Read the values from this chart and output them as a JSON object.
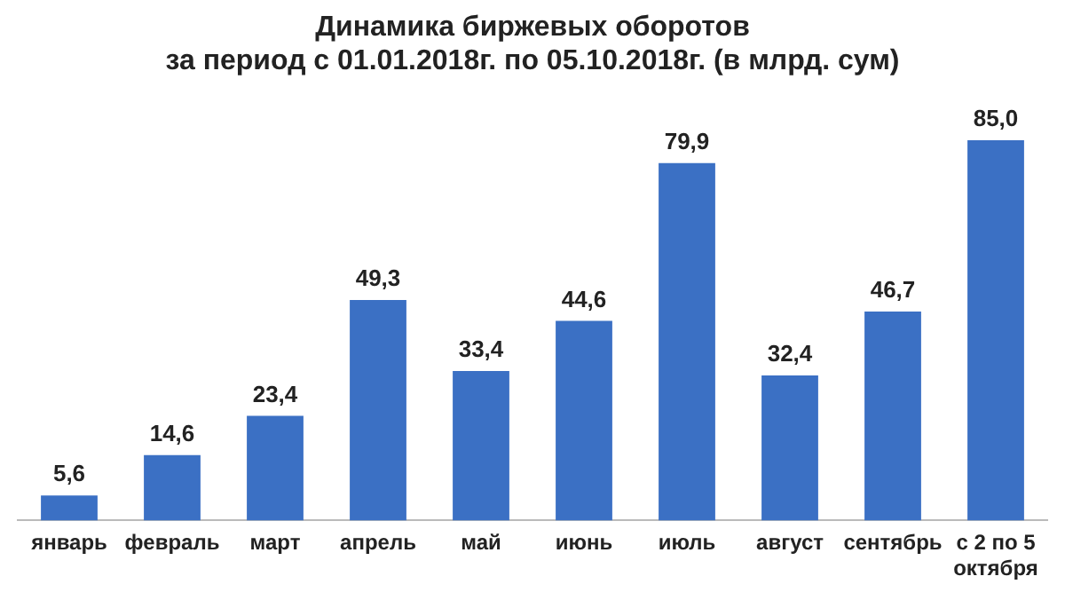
{
  "chart_data": {
    "type": "bar",
    "title": "Динамика биржевых оборотов",
    "subtitle": "за период с 01.01.2018г. по 05.10.2018г. (в млрд. сум)",
    "categories": [
      "январь",
      "февраль",
      "март",
      "апрель",
      "май",
      "июнь",
      "июль",
      "август",
      "сентябрь",
      "с 2 по 5 октября"
    ],
    "values": [
      5.6,
      14.6,
      23.4,
      49.3,
      33.4,
      44.6,
      79.9,
      32.4,
      46.7,
      85.0
    ],
    "value_labels": [
      "5,6",
      "14,6",
      "23,4",
      "49,3",
      "33,4",
      "44,6",
      "79,9",
      "32,4",
      "46,7",
      "85,0"
    ],
    "color": "#3b70c4",
    "grid": false,
    "legend": false
  }
}
